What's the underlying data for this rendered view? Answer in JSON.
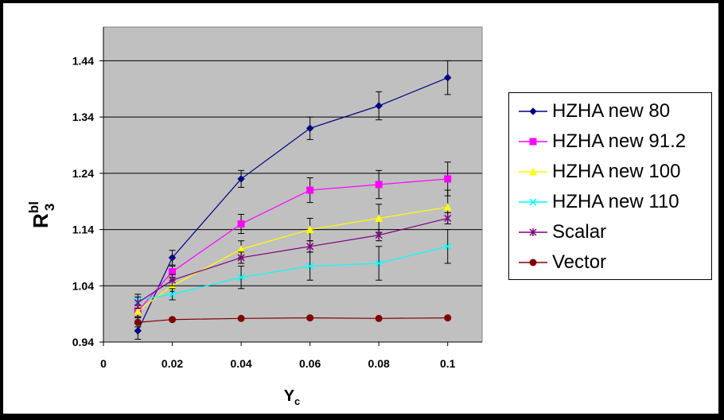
{
  "chart_data": {
    "type": "line",
    "x": [
      0.01,
      0.02,
      0.04,
      0.06,
      0.08,
      0.1
    ],
    "xlabel_main": "Y",
    "xlabel_sub": "c",
    "ylabel_main": "R",
    "ylabel_sup": "bl",
    "ylabel_sub": "3",
    "xlim": [
      0,
      0.11
    ],
    "ylim": [
      0.94,
      1.5
    ],
    "x_ticks": [
      0,
      0.02,
      0.04,
      0.06,
      0.08,
      0.1
    ],
    "x_tick_labels": [
      "0",
      "0.02",
      "0.04",
      "0.06",
      "0.08",
      "0.1"
    ],
    "y_ticks": [
      0.94,
      1.04,
      1.14,
      1.24,
      1.34,
      1.44
    ],
    "y_tick_labels": [
      "0.94",
      "1.04",
      "1.14",
      "1.24",
      "1.34",
      "1.44"
    ],
    "grid": "horizontal",
    "plot_background": "#c0c0c0",
    "legend_position": "right",
    "series": [
      {
        "name": "HZHA new 80",
        "color": "#000080",
        "marker": "diamond",
        "values": [
          0.96,
          1.09,
          1.23,
          1.32,
          1.36,
          1.41
        ],
        "errors": [
          0.015,
          0.013,
          0.015,
          0.02,
          0.025,
          0.03
        ]
      },
      {
        "name": "HZHA new 91.2",
        "color": "#ff00ff",
        "marker": "square",
        "values": [
          0.995,
          1.065,
          1.15,
          1.21,
          1.22,
          1.23
        ],
        "errors": [
          0.01,
          0.01,
          0.017,
          0.022,
          0.025,
          0.03
        ]
      },
      {
        "name": "HZHA new 100",
        "color": "#ffff00",
        "marker": "triangle",
        "values": [
          0.995,
          1.04,
          1.105,
          1.14,
          1.16,
          1.18
        ],
        "errors": [
          0.01,
          0.01,
          0.015,
          0.02,
          0.025,
          0.03
        ]
      },
      {
        "name": "HZHA new 110",
        "color": "#00ffff",
        "marker": "x",
        "values": [
          1.015,
          1.025,
          1.055,
          1.075,
          1.08,
          1.11
        ],
        "errors": [
          0.01,
          0.01,
          0.02,
          0.025,
          0.03,
          0.03
        ]
      },
      {
        "name": "Scalar",
        "color": "#800080",
        "marker": "star",
        "values": [
          1.01,
          1.05,
          1.09,
          1.11,
          1.13,
          1.16
        ],
        "errors": [
          0.01,
          0.01,
          0.01,
          0.01,
          0.01,
          0.01
        ]
      },
      {
        "name": "Vector",
        "color": "#800000",
        "marker": "circle",
        "values": [
          0.975,
          0.98,
          0.982,
          0.983,
          0.982,
          0.983
        ],
        "errors": [
          0.008,
          0.0,
          0.0,
          0.0,
          0.0,
          0.0
        ]
      }
    ]
  }
}
